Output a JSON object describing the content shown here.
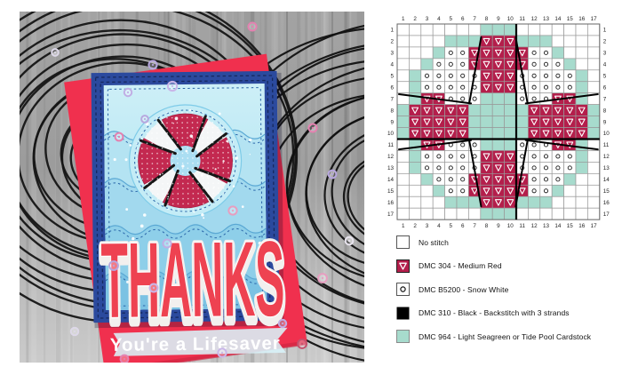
{
  "card": {
    "thanks_text": "THANKS",
    "subtitle_text": "You're a Lifesaver",
    "colors": {
      "navy_frame": "#2b4a9e",
      "red_cardstock": "#f0304e",
      "aqua_panel_top": "#cdeff7",
      "aqua_panel_bottom": "#7cc6e6",
      "thanks_red": "#ee4251",
      "lifesaver_red": "#c32950",
      "wood_gray": "#a8a8a8"
    }
  },
  "chart_data": {
    "type": "cross-stitch-grid",
    "size": 17,
    "column_labels": [
      1,
      2,
      3,
      4,
      5,
      6,
      7,
      8,
      9,
      10,
      11,
      12,
      13,
      14,
      15,
      16,
      17
    ],
    "row_labels": [
      1,
      2,
      3,
      4,
      5,
      6,
      7,
      8,
      9,
      10,
      11,
      12,
      13,
      14,
      15,
      16,
      17
    ],
    "codes": {
      ".": "No stitch",
      "G": "DMC 964 seagreen",
      "O": "DMC B5200 snow white",
      "R": "DMC 304 medium red"
    },
    "rows": [
      ".......GGG.......",
      "....GGGRRRGGG....",
      "...GOORRRRROOG...",
      "..GOOORRRRROOOG..",
      ".GOOOOORRROOOOOG.",
      ".GOOOOORRROOOOOG.",
      ".GRROOOGGGOOORRG.",
      "GRRRRRGGGGGRRRRRG",
      "GRRRRRGGGGGRRRRRG",
      "GRRRRRGGGGGRRRRRG",
      ".GRROOOGGGOOORRG.",
      ".GOOOOORRROOOOOG.",
      ".GOOOOORRROOOOOG.",
      "..GOOORRRRROOOG..",
      "...GOORRRRROOG...",
      "....GGGRRRGGG....",
      ".......GGG......."
    ],
    "center_lines": {
      "vertical_after_column": 10,
      "horizontal_after_row": 10
    },
    "backstitch_lines_cells": [
      [
        7.05,
        1.15,
        6.05,
        6.9
      ],
      [
        9.95,
        1.15,
        10.95,
        6.9
      ],
      [
        0.15,
        6.1,
        6.2,
        6.9
      ],
      [
        16.85,
        6.1,
        10.8,
        6.9
      ],
      [
        0.15,
        10.9,
        6.2,
        10.1
      ],
      [
        16.85,
        10.9,
        10.8,
        10.1
      ],
      [
        6.05,
        10.1,
        7.05,
        15.85
      ],
      [
        10.95,
        10.1,
        9.95,
        15.85
      ]
    ],
    "colors": {
      "red": "#b41e4b",
      "seagreen": "#a7dbcd",
      "no_stitch": "#ffffff",
      "grid_line": "#999999",
      "backstitch": "#000000"
    }
  },
  "legend": {
    "items": [
      {
        "symbol": "none",
        "label": "No stitch"
      },
      {
        "symbol": "triangle",
        "label": "DMC 304 - Medium Red"
      },
      {
        "symbol": "circle",
        "label": "DMC B5200 - Snow White"
      },
      {
        "symbol": "black",
        "label": "DMC 310 - Black - Backstitch with 3 strands"
      },
      {
        "symbol": "seagreen",
        "label": "DMC 964 - Light Seagreen or Tide Pool Cardstock"
      }
    ]
  }
}
